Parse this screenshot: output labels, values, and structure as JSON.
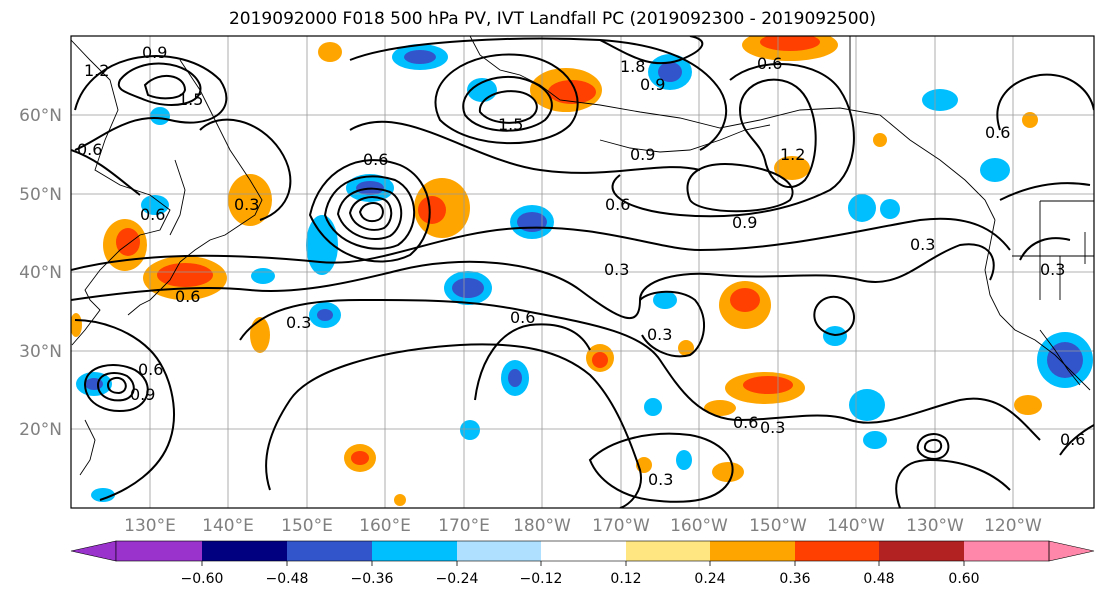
{
  "title": "2019092000 F018 500 hPa PV, IVT Landfall PC (2019092300 - 2019092500)",
  "map": {
    "projection": "PlateCarree",
    "lon_range": [
      120,
      -110
    ],
    "lat_range": [
      10,
      70
    ],
    "lon_ticks": [
      "130°E",
      "140°E",
      "150°E",
      "160°E",
      "170°E",
      "180°W",
      "170°W",
      "160°W",
      "150°W",
      "140°W",
      "130°W",
      "120°W"
    ],
    "lat_ticks": [
      "20°N",
      "30°N",
      "40°N",
      "50°N",
      "60°N"
    ],
    "gridlines": true
  },
  "colorbar": {
    "ticks": [
      "−0.60",
      "−0.48",
      "−0.36",
      "−0.24",
      "−0.12",
      "0.12",
      "0.24",
      "0.36",
      "0.48",
      "0.60"
    ],
    "colors": [
      "#9933cc",
      "#000080",
      "#3355cc",
      "#00bfff",
      "#b0e0ff",
      "#ffffff",
      "#ffe680",
      "#ffa500",
      "#ff4000",
      "#b22222",
      "#ff88aa"
    ],
    "extend": "both"
  },
  "contour_labels": [
    "0.9",
    "1.2",
    "1.5",
    "1.8",
    "1.5",
    "0.6",
    "0.9",
    "0.6",
    "0.6",
    "0.9",
    "1.2",
    "0.6",
    "0.6",
    "0.3",
    "0.9",
    "0.6",
    "0.3",
    "0.6",
    "0.3",
    "0.3",
    "0.6",
    "0.3",
    "0.3",
    "0.9",
    "0.6",
    "0.3",
    "0.6",
    "0.3",
    "0.6"
  ]
}
